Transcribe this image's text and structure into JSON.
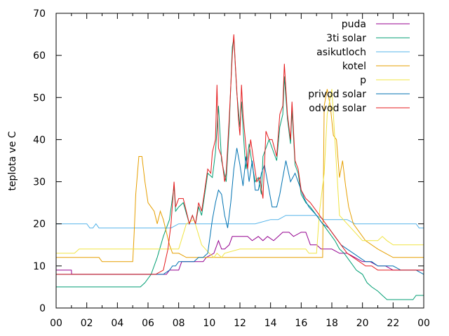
{
  "chart_data": {
    "type": "line",
    "ylabel": "teplota ve C",
    "xlim": [
      0,
      24
    ],
    "ylim": [
      0,
      70
    ],
    "x_ticks": [
      "00",
      "02",
      "04",
      "06",
      "08",
      "10",
      "12",
      "14",
      "16",
      "18",
      "20",
      "22",
      "00"
    ],
    "y_ticks": [
      "0",
      "10",
      "20",
      "30",
      "40",
      "50",
      "60",
      "70"
    ],
    "grid": false,
    "legend_position": "top-right",
    "series": [
      {
        "name": "puda",
        "color": "#94008f",
        "x": [
          0,
          1,
          1.01,
          7.2,
          7.4,
          8.0,
          8.2,
          9.6,
          9.8,
          10.3,
          10.6,
          10.8,
          11.0,
          11.3,
          11.5,
          11.8,
          12.5,
          12.8,
          13.2,
          13.5,
          13.8,
          14.2,
          14.5,
          14.8,
          15.2,
          15.5,
          16.0,
          16.3,
          16.6,
          17.0,
          17.3,
          17.6,
          18.0,
          18.5,
          19.0,
          19.5,
          20.0,
          20.5,
          21.0,
          21.5,
          22.0,
          22.5,
          23.0,
          24
        ],
        "y": [
          9,
          9,
          8,
          8,
          9,
          9,
          11,
          11,
          12,
          13,
          16,
          14,
          14,
          15,
          17,
          17,
          17,
          16,
          17,
          16,
          17,
          16,
          17,
          18,
          18,
          17,
          18,
          18,
          15,
          15,
          14,
          14,
          14,
          13,
          13,
          12,
          11,
          11,
          10,
          10,
          9,
          9,
          9,
          9
        ]
      },
      {
        "name": "3ti solar",
        "color": "#009e73",
        "x": [
          0,
          5.5,
          5.8,
          6.2,
          6.6,
          7.0,
          7.4,
          7.7,
          7.8,
          8.0,
          8.3,
          8.7,
          8.9,
          9.1,
          9.3,
          9.5,
          9.7,
          9.9,
          10.2,
          10.4,
          10.6,
          10.8,
          11.1,
          11.3,
          11.5,
          11.6,
          11.8,
          12.0,
          12.1,
          12.3,
          12.4,
          12.6,
          12.8,
          13.0,
          13.2,
          13.4,
          13.5,
          13.7,
          13.9,
          14.1,
          14.4,
          14.6,
          14.8,
          14.9,
          15.1,
          15.3,
          15.4,
          15.6,
          15.8,
          16.0,
          16.3,
          16.6,
          17.0,
          17.4,
          17.8,
          18.2,
          18.5,
          18.8,
          19.2,
          19.6,
          20.0,
          20.3,
          20.6,
          21.0,
          21.3,
          21.6,
          22.0,
          22.5,
          23.0,
          23.3,
          23.5,
          24
        ],
        "y": [
          5,
          5,
          6,
          8,
          12,
          17,
          21,
          29,
          23,
          24,
          25,
          20,
          22,
          20,
          24,
          22,
          27,
          32,
          31,
          37,
          48,
          35,
          30,
          43,
          62,
          64,
          51,
          43,
          49,
          37,
          33,
          39,
          34,
          30,
          31,
          27,
          36,
          38,
          40,
          38,
          35,
          43,
          46,
          55,
          45,
          39,
          47,
          34,
          32,
          27,
          25,
          24,
          22,
          20,
          18,
          16,
          14,
          13,
          11,
          9,
          8,
          6,
          5,
          4,
          3,
          2,
          2,
          2,
          2,
          2,
          3,
          3
        ]
      },
      {
        "name": "asikutloch",
        "color": "#56b4e9",
        "x": [
          0,
          2.0,
          2.2,
          2.4,
          2.6,
          2.8,
          5.0,
          7.0,
          7.5,
          8.0,
          9.0,
          10.0,
          11.0,
          12.0,
          13.0,
          14.0,
          14.5,
          15.0,
          15.5,
          16.0,
          16.5,
          17.0,
          17.5,
          18.0,
          18.5,
          19.0,
          19.5,
          20.0,
          20.5,
          21.0,
          21.5,
          22.0,
          22.5,
          23.0,
          23.5,
          23.7,
          24
        ],
        "y": [
          20,
          20,
          19,
          19,
          20,
          19,
          19,
          19,
          19,
          20,
          20,
          20,
          20,
          20,
          20,
          21,
          21,
          22,
          22,
          22,
          22,
          22,
          21,
          21,
          21,
          21,
          20,
          20,
          20,
          20,
          20,
          20,
          20,
          20,
          20,
          19,
          19
        ]
      },
      {
        "name": "kotel",
        "color": "#e69f00",
        "x": [
          0,
          2.8,
          3.0,
          5.0,
          5.1,
          5.2,
          5.4,
          5.6,
          5.8,
          6.0,
          6.2,
          6.4,
          6.6,
          6.8,
          7.0,
          7.2,
          7.4,
          7.6,
          8.0,
          8.5,
          9.0,
          16.5,
          17.0,
          17.4,
          17.5,
          17.7,
          17.9,
          18.1,
          18.3,
          18.5,
          18.7,
          18.9,
          19.1,
          19.4,
          19.8,
          20.2,
          20.6,
          21.0,
          21.5,
          22.0,
          23.0,
          24
        ],
        "y": [
          12,
          12,
          11,
          11,
          18,
          27,
          36,
          36,
          30,
          25,
          24,
          23,
          20,
          23,
          21,
          18,
          15,
          13,
          13,
          12,
          12,
          12,
          12,
          12,
          48,
          52,
          48,
          41,
          40,
          31,
          35,
          29,
          24,
          20,
          18,
          16,
          15,
          14,
          13,
          12,
          12,
          12
        ]
      },
      {
        "name": "p",
        "color": "#f0e442",
        "x": [
          0,
          1.2,
          1.5,
          7.5,
          8.0,
          8.5,
          9.0,
          9.5,
          10.0,
          10.3,
          10.5,
          10.8,
          11.0,
          12.0,
          13.0,
          14.0,
          15.0,
          15.5,
          16.0,
          16.3,
          16.5,
          16.8,
          17.0,
          17.2,
          17.5,
          17.7,
          18.0,
          18.5,
          19.0,
          19.5,
          20.0,
          20.5,
          21.0,
          21.3,
          21.6,
          22.0,
          22.5,
          23.0,
          23.5,
          24
        ],
        "y": [
          13,
          13,
          14,
          14,
          14,
          20,
          21,
          15,
          13,
          12,
          13,
          12,
          13,
          14,
          14,
          14,
          14,
          14,
          14,
          14,
          13,
          13,
          13,
          23,
          32,
          46,
          52,
          22,
          20,
          18,
          16,
          16,
          16,
          17,
          16,
          15,
          15,
          15,
          15,
          15
        ]
      },
      {
        "name": "privod solar",
        "color": "#0072b2",
        "x": [
          0,
          5.5,
          6.0,
          6.5,
          7.0,
          7.4,
          7.6,
          7.8,
          8.0,
          8.3,
          8.7,
          9.0,
          9.3,
          9.6,
          9.9,
          10.2,
          10.4,
          10.6,
          10.8,
          11.0,
          11.2,
          11.4,
          11.6,
          11.8,
          12.0,
          12.2,
          12.4,
          12.6,
          12.8,
          13.0,
          13.2,
          13.4,
          13.6,
          13.8,
          14.1,
          14.4,
          14.6,
          14.8,
          15.0,
          15.3,
          15.6,
          15.9,
          16.2,
          16.5,
          17.0,
          17.4,
          17.8,
          18.2,
          18.6,
          19.0,
          19.4,
          19.8,
          20.2,
          20.6,
          21.0,
          21.5,
          22.0,
          22.5,
          23.0,
          23.5,
          24
        ],
        "y": [
          8,
          8,
          8,
          8,
          8,
          9,
          10,
          10,
          11,
          11,
          11,
          11,
          12,
          12,
          13,
          21,
          25,
          28,
          27,
          22,
          19,
          25,
          33,
          38,
          34,
          29,
          36,
          30,
          35,
          28,
          28,
          32,
          34,
          30,
          24,
          24,
          27,
          31,
          35,
          30,
          32,
          29,
          26,
          24,
          22,
          20,
          19,
          17,
          15,
          14,
          13,
          12,
          11,
          11,
          10,
          10,
          10,
          9,
          9,
          9,
          8
        ]
      },
      {
        "name": "odvod solar",
        "color": "#e41a1c",
        "x": [
          0,
          5.5,
          6.0,
          6.5,
          7.0,
          7.3,
          7.5,
          7.7,
          7.8,
          8.0,
          8.3,
          8.7,
          8.9,
          9.1,
          9.3,
          9.5,
          9.7,
          9.9,
          10.1,
          10.2,
          10.4,
          10.5,
          10.6,
          10.8,
          11.0,
          11.1,
          11.3,
          11.5,
          11.6,
          11.7,
          11.9,
          12.0,
          12.1,
          12.2,
          12.4,
          12.5,
          12.7,
          12.9,
          13.1,
          13.3,
          13.5,
          13.7,
          13.9,
          14.1,
          14.4,
          14.6,
          14.8,
          14.9,
          15.1,
          15.3,
          15.4,
          15.6,
          15.8,
          16.0,
          16.3,
          16.6,
          17.0,
          17.4,
          17.8,
          18.2,
          18.6,
          19.0,
          19.4,
          19.8,
          20.2,
          20.6,
          21.0,
          21.5,
          22.0,
          22.5,
          23.0,
          23.5,
          24
        ],
        "y": [
          8,
          8,
          8,
          8,
          9,
          14,
          20,
          30,
          24,
          26,
          26,
          20,
          22,
          20,
          25,
          23,
          28,
          33,
          32,
          37,
          40,
          53,
          38,
          36,
          30,
          32,
          45,
          60,
          65,
          58,
          45,
          41,
          53,
          46,
          38,
          33,
          40,
          35,
          30,
          31,
          26,
          42,
          40,
          40,
          36,
          46,
          48,
          58,
          46,
          40,
          49,
          35,
          33,
          28,
          26,
          25,
          23,
          21,
          19,
          17,
          15,
          13,
          12,
          11,
          10,
          10,
          9,
          9,
          9,
          9,
          9,
          9,
          9
        ]
      }
    ]
  }
}
